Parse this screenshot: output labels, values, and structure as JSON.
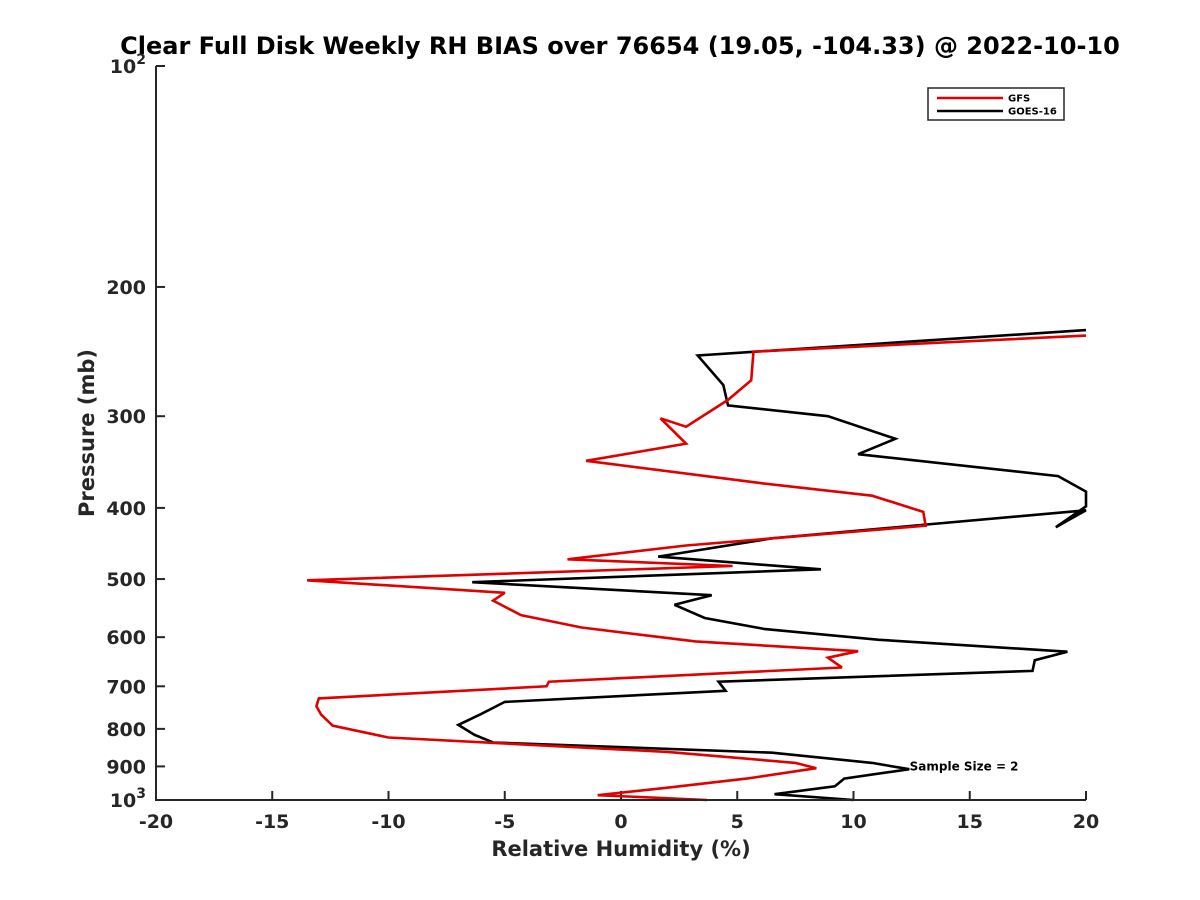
{
  "chart_data": {
    "type": "line",
    "title": "Clear Full Disk Weekly RH BIAS over 76654 (19.05, -104.33) @ 2022-10-10",
    "xlabel": "Relative Humidity (%)",
    "ylabel": "Pressure (mb)",
    "xlim": [
      -20,
      20
    ],
    "ylim": [
      100,
      1000
    ],
    "yscale": "log",
    "yreversed": true,
    "grid": false,
    "x_ticks": [
      "-20",
      "-15",
      "-10",
      "-5",
      "0",
      "5",
      "10",
      "15",
      "20"
    ],
    "y_ticks": [
      {
        "value": 100,
        "base": "10",
        "exp": "2"
      },
      {
        "value": 200,
        "label": "200"
      },
      {
        "value": 300,
        "label": "300"
      },
      {
        "value": 400,
        "label": "400"
      },
      {
        "value": 500,
        "label": "500"
      },
      {
        "value": 600,
        "label": "600"
      },
      {
        "value": 700,
        "label": "700"
      },
      {
        "value": 800,
        "label": "800"
      },
      {
        "value": 900,
        "label": "900"
      },
      {
        "value": 1000,
        "base": "10",
        "exp": "3"
      }
    ],
    "legend_position": "top-right",
    "annotation": {
      "text": "Sample Size = 2",
      "x": 12.5,
      "y": 900
    },
    "series": [
      {
        "name": "GFS",
        "color": "#e00000",
        "points": [
          [
            20.0,
            233
          ],
          [
            5.7,
            245
          ],
          [
            5.6,
            268
          ],
          [
            4.6,
            285
          ],
          [
            2.8,
            310
          ],
          [
            1.7,
            302
          ],
          [
            2.8,
            327
          ],
          [
            -1.5,
            345
          ],
          [
            6.0,
            370
          ],
          [
            10.8,
            385
          ],
          [
            13.0,
            405
          ],
          [
            13.1,
            423
          ],
          [
            2.8,
            450
          ],
          [
            -2.3,
            470
          ],
          [
            4.8,
            480
          ],
          [
            -13.5,
            502
          ],
          [
            -5.0,
            522
          ],
          [
            -5.5,
            535
          ],
          [
            -4.3,
            560
          ],
          [
            -1.7,
            582
          ],
          [
            3.2,
            608
          ],
          [
            10.2,
            627
          ],
          [
            8.9,
            640
          ],
          [
            9.5,
            660
          ],
          [
            -3.1,
            690
          ],
          [
            -3.2,
            700
          ],
          [
            -13.0,
            727
          ],
          [
            -13.1,
            745
          ],
          [
            -12.9,
            765
          ],
          [
            -12.4,
            792
          ],
          [
            -10.0,
            822
          ],
          [
            2.0,
            860
          ],
          [
            7.5,
            890
          ],
          [
            8.4,
            905
          ],
          [
            5.4,
            935
          ],
          [
            2.0,
            962
          ],
          [
            -1.0,
            985
          ],
          [
            3.7,
            1000
          ]
        ]
      },
      {
        "name": "GOES-16",
        "color": "#000000",
        "points": [
          [
            20.0,
            229
          ],
          [
            3.3,
            248
          ],
          [
            4.4,
            272
          ],
          [
            4.6,
            290
          ],
          [
            8.9,
            300
          ],
          [
            11.8,
            322
          ],
          [
            10.2,
            338
          ],
          [
            18.8,
            362
          ],
          [
            20.0,
            380
          ],
          [
            20.0,
            398
          ],
          [
            18.7,
            425
          ],
          [
            20.0,
            403
          ],
          [
            6.5,
            440
          ],
          [
            1.6,
            466
          ],
          [
            8.6,
            485
          ],
          [
            -6.4,
            505
          ],
          [
            3.9,
            526
          ],
          [
            2.3,
            542
          ],
          [
            3.6,
            565
          ],
          [
            6.2,
            585
          ],
          [
            11.1,
            605
          ],
          [
            19.2,
            628
          ],
          [
            17.8,
            645
          ],
          [
            17.7,
            667
          ],
          [
            4.2,
            690
          ],
          [
            4.5,
            710
          ],
          [
            -5.0,
            735
          ],
          [
            -6.0,
            763
          ],
          [
            -7.0,
            790
          ],
          [
            -6.3,
            815
          ],
          [
            -5.5,
            835
          ],
          [
            6.5,
            862
          ],
          [
            10.8,
            890
          ],
          [
            12.4,
            908
          ],
          [
            9.6,
            935
          ],
          [
            9.2,
            958
          ],
          [
            6.6,
            982
          ],
          [
            10.0,
            1000
          ]
        ]
      }
    ]
  }
}
